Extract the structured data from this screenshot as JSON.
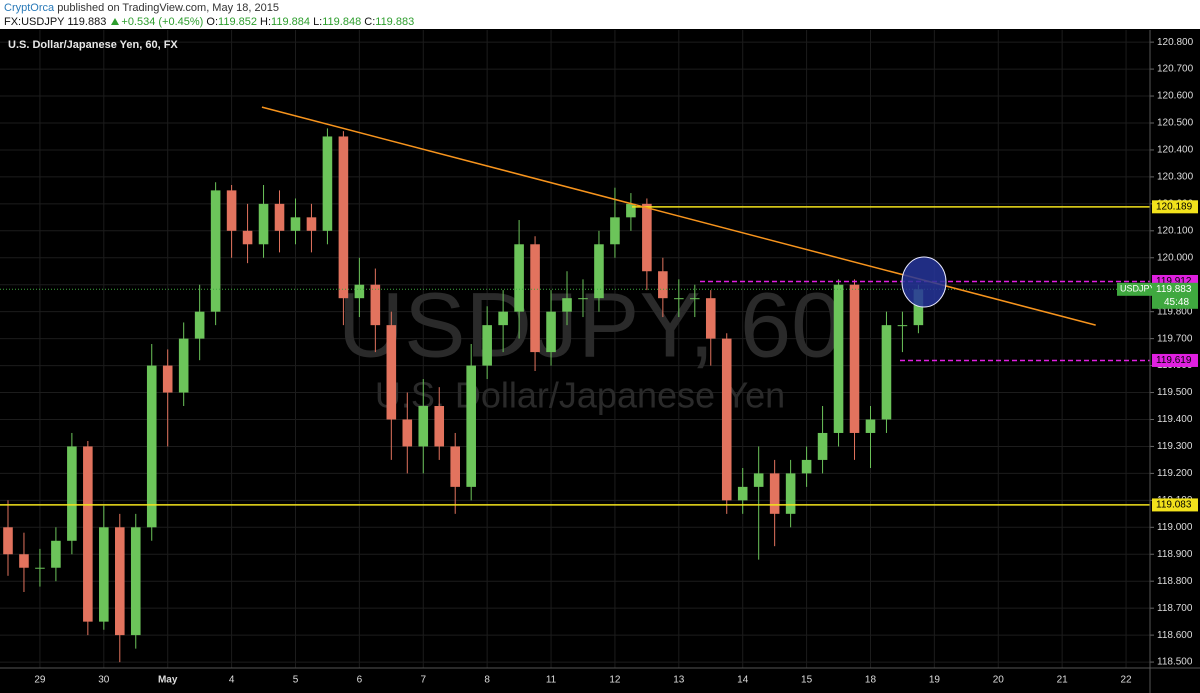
{
  "header": {
    "author": "CryptOrca",
    "published": "published on TradingView.com, May 18, 2015",
    "symbol": "FX:USDJPY",
    "last": "119.883",
    "change": "+0.534 (+0.45%)",
    "ohlc": [
      {
        "label": "O:",
        "value": "119.852"
      },
      {
        "label": "H:",
        "value": "119.884"
      },
      {
        "label": "L:",
        "value": "119.848"
      },
      {
        "label": "C:",
        "value": "119.883"
      }
    ]
  },
  "chart_data": {
    "type": "candlestick",
    "title": "U.S. Dollar/Japanese Yen, 60, FX",
    "watermark": "USDJPY, 60",
    "watermark_subtitle": "U.S. Dollar/Japanese Yen",
    "up_color": "#6cc45a",
    "down_color": "#e2735e",
    "grid": true,
    "categories": [
      null,
      null,
      "29",
      null,
      null,
      null,
      "30",
      null,
      null,
      null,
      "May",
      null,
      null,
      null,
      "4",
      null,
      null,
      null,
      "5",
      null,
      null,
      null,
      "6",
      null,
      null,
      null,
      "7",
      null,
      null,
      null,
      "8",
      null,
      null,
      null,
      "11",
      null,
      null,
      null,
      "12",
      null,
      null,
      null,
      "13",
      null,
      null,
      null,
      "14",
      null,
      null,
      null,
      "15",
      null,
      null,
      null,
      "18",
      null,
      null,
      null,
      "19",
      null,
      null,
      null,
      "20",
      null,
      null,
      null,
      "21",
      null,
      null,
      null,
      "22",
      null
    ],
    "open": [
      119.0,
      118.9,
      118.85,
      118.85,
      118.95,
      119.3,
      118.65,
      119.0,
      118.6,
      119.0,
      119.6,
      119.5,
      119.7,
      119.8,
      120.25,
      120.1,
      120.05,
      120.2,
      120.1,
      120.15,
      120.1,
      120.45,
      119.85,
      119.9,
      119.75,
      119.4,
      119.3,
      119.45,
      119.3,
      119.15,
      119.6,
      119.75,
      119.8,
      120.05,
      119.65,
      119.8,
      119.85,
      119.85,
      120.05,
      120.15,
      120.2,
      119.95,
      119.85,
      119.85,
      119.85,
      119.7,
      119.1,
      119.15,
      119.2,
      119.05,
      119.2,
      119.25,
      119.35,
      119.9,
      119.35,
      119.4,
      119.75,
      119.75,
      null,
      null,
      null,
      null,
      null,
      null,
      null,
      null,
      null,
      null,
      null,
      null,
      null,
      null
    ],
    "high": [
      119.1,
      118.98,
      118.92,
      119.0,
      119.35,
      119.32,
      119.08,
      119.05,
      119.05,
      119.68,
      119.66,
      119.76,
      119.9,
      120.28,
      120.27,
      120.2,
      120.27,
      120.25,
      120.22,
      120.2,
      120.48,
      120.47,
      120.0,
      119.96,
      119.8,
      119.5,
      119.55,
      119.52,
      119.35,
      119.68,
      119.82,
      119.88,
      120.14,
      120.08,
      119.88,
      119.95,
      119.92,
      120.1,
      120.26,
      120.24,
      120.22,
      120.0,
      119.92,
      119.9,
      119.88,
      119.72,
      119.22,
      119.3,
      119.25,
      119.25,
      119.3,
      119.45,
      119.92,
      119.92,
      119.45,
      119.8,
      119.8,
      119.9,
      null,
      null,
      null,
      null,
      null,
      null,
      null,
      null,
      null,
      null,
      null,
      null,
      null,
      null
    ],
    "low": [
      118.82,
      118.76,
      118.78,
      118.8,
      118.9,
      118.6,
      118.62,
      118.5,
      118.55,
      118.95,
      119.3,
      119.45,
      119.62,
      119.75,
      120.0,
      119.98,
      120.0,
      120.02,
      120.05,
      120.02,
      120.05,
      119.75,
      119.78,
      119.65,
      119.25,
      119.2,
      119.2,
      119.25,
      119.05,
      119.1,
      119.55,
      119.65,
      119.7,
      119.58,
      119.6,
      119.75,
      119.78,
      119.8,
      120.0,
      120.1,
      119.88,
      119.78,
      119.78,
      119.78,
      119.6,
      119.05,
      119.05,
      118.88,
      118.93,
      119.0,
      119.15,
      119.2,
      119.3,
      119.25,
      119.22,
      119.35,
      119.65,
      119.72,
      null,
      null,
      null,
      null,
      null,
      null,
      null,
      null,
      null,
      null,
      null,
      null,
      null,
      null
    ],
    "close": [
      118.9,
      118.85,
      118.85,
      118.95,
      119.3,
      118.65,
      119.0,
      118.6,
      119.0,
      119.6,
      119.5,
      119.7,
      119.8,
      120.25,
      120.1,
      120.05,
      120.2,
      120.1,
      120.15,
      120.1,
      120.45,
      119.85,
      119.9,
      119.75,
      119.4,
      119.3,
      119.45,
      119.3,
      119.15,
      119.6,
      119.75,
      119.8,
      120.05,
      119.65,
      119.8,
      119.85,
      119.85,
      120.05,
      120.15,
      120.2,
      119.95,
      119.85,
      119.85,
      119.85,
      119.7,
      119.1,
      119.15,
      119.2,
      119.05,
      119.2,
      119.25,
      119.35,
      119.9,
      119.35,
      119.4,
      119.75,
      119.75,
      119.883,
      null,
      null,
      null,
      null,
      null,
      null,
      null,
      null,
      null,
      null,
      null,
      null,
      null,
      null
    ],
    "ylim": [
      118.478,
      120.845
    ],
    "yticks": [
      {
        "value": 118.5,
        "label": "118.500"
      },
      {
        "value": 118.6,
        "label": "118.600"
      },
      {
        "value": 118.7,
        "label": "118.700"
      },
      {
        "value": 118.8,
        "label": "118.800"
      },
      {
        "value": 118.9,
        "label": "118.900"
      },
      {
        "value": 119.0,
        "label": "119.000"
      },
      {
        "value": 119.1,
        "label": "119.100"
      },
      {
        "value": 119.2,
        "label": "119.200"
      },
      {
        "value": 119.3,
        "label": "119.300"
      },
      {
        "value": 119.4,
        "label": "119.400"
      },
      {
        "value": 119.5,
        "label": "119.500"
      },
      {
        "value": 119.6,
        "label": "119.600"
      },
      {
        "value": 119.7,
        "label": "119.700"
      },
      {
        "value": 119.8,
        "label": "119.800"
      },
      {
        "value": 119.9,
        "label": "119.900"
      },
      {
        "value": 120.0,
        "label": "120.000"
      },
      {
        "value": 120.1,
        "label": "120.100"
      },
      {
        "value": 120.2,
        "label": "120.200"
      },
      {
        "value": 120.3,
        "label": "120.300"
      },
      {
        "value": 120.4,
        "label": "120.400"
      },
      {
        "value": 120.5,
        "label": "120.500"
      },
      {
        "value": 120.6,
        "label": "120.600"
      },
      {
        "value": 120.7,
        "label": "120.700"
      },
      {
        "value": 120.8,
        "label": "120.800"
      }
    ],
    "levels": [
      {
        "value": 120.189,
        "color": "#f2e21c",
        "style": "solid"
      },
      {
        "value": 119.083,
        "color": "#f2e21c",
        "style": "solid"
      },
      {
        "value": 119.912,
        "color": "#e020e0",
        "style": "dashed"
      },
      {
        "value": 119.619,
        "color": "#e020e0",
        "style": "dashed"
      }
    ],
    "last_price": {
      "name": "USDJPY",
      "value": 119.883,
      "countdown": "45:48",
      "color": "#3fa83f"
    },
    "trendline": {
      "color": "#f7941d",
      "x": [
        15.9,
        68.1
      ],
      "y": [
        120.559,
        119.75
      ]
    }
  }
}
